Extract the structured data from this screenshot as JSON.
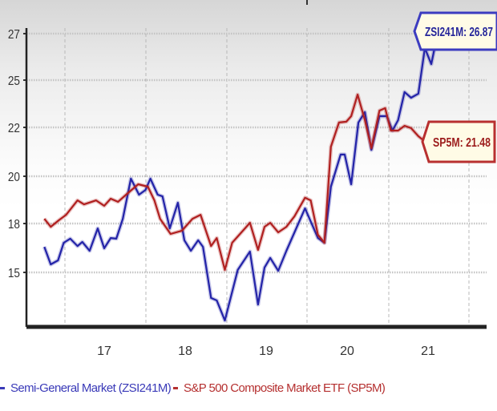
{
  "chart_data": {
    "type": "line",
    "title": "",
    "xlabel": "",
    "ylabel": "",
    "x_ticks": [
      "17",
      "18",
      "19",
      "20",
      "21"
    ],
    "y_ticks": [
      "15",
      "18",
      "20",
      "22",
      "25",
      "27"
    ],
    "x_range": [
      16.5,
      21.75
    ],
    "y_range": [
      12,
      27
    ],
    "grid": {
      "horizontal": "dotted",
      "vertical": "dashed"
    },
    "legend_position": "bottom",
    "series": [
      {
        "name": "Semi-General Market (ZSI241M)",
        "color": "#2323a8",
        "end_label": "ZSI241M: 26.87",
        "points": [
          [
            16.26,
            16.57
          ],
          [
            16.34,
            15.49
          ],
          [
            16.43,
            15.74
          ],
          [
            16.5,
            16.82
          ],
          [
            16.58,
            17.07
          ],
          [
            16.67,
            16.62
          ],
          [
            16.73,
            16.87
          ],
          [
            16.82,
            16.33
          ],
          [
            16.92,
            17.7
          ],
          [
            17.0,
            16.48
          ],
          [
            17.08,
            17.11
          ],
          [
            17.15,
            17.07
          ],
          [
            17.23,
            18.2
          ],
          [
            17.33,
            19.9
          ],
          [
            17.43,
            19.22
          ],
          [
            17.51,
            19.42
          ],
          [
            17.57,
            19.9
          ],
          [
            17.66,
            19.22
          ],
          [
            17.72,
            19.15
          ],
          [
            17.81,
            17.7
          ],
          [
            17.91,
            18.88
          ],
          [
            17.99,
            16.97
          ],
          [
            18.07,
            16.33
          ],
          [
            18.16,
            16.97
          ],
          [
            18.22,
            16.57
          ],
          [
            18.32,
            13.43
          ],
          [
            18.39,
            13.28
          ],
          [
            18.49,
            12.05
          ],
          [
            18.65,
            15.15
          ],
          [
            18.8,
            16.28
          ],
          [
            18.9,
            13.03
          ],
          [
            18.98,
            15.3
          ],
          [
            19.05,
            15.89
          ],
          [
            19.15,
            15.1
          ],
          [
            19.25,
            16.33
          ],
          [
            19.48,
            18.64
          ],
          [
            19.64,
            17.11
          ],
          [
            19.72,
            16.82
          ],
          [
            19.8,
            19.56
          ],
          [
            19.92,
            20.89
          ],
          [
            19.97,
            20.89
          ],
          [
            20.05,
            19.66
          ],
          [
            20.14,
            22.31
          ],
          [
            20.22,
            22.97
          ],
          [
            20.3,
            21.08
          ],
          [
            20.4,
            22.71
          ],
          [
            20.49,
            22.71
          ],
          [
            20.56,
            21.87
          ],
          [
            20.63,
            22.46
          ],
          [
            20.71,
            24.24
          ],
          [
            20.79,
            23.88
          ],
          [
            20.88,
            24.14
          ],
          [
            20.96,
            26.38
          ],
          [
            21.04,
            25.69
          ],
          [
            21.11,
            26.87
          ]
        ]
      },
      {
        "name": "S&P 500 Composite Market ETF (SP5M)",
        "color": "#b02020",
        "end_label": "SP5M: 21.48",
        "points": [
          [
            16.26,
            18.2
          ],
          [
            16.34,
            17.8
          ],
          [
            16.44,
            18.14
          ],
          [
            16.53,
            18.37
          ],
          [
            16.67,
            18.98
          ],
          [
            16.75,
            18.81
          ],
          [
            16.9,
            18.98
          ],
          [
            17.0,
            18.75
          ],
          [
            17.08,
            19.05
          ],
          [
            17.17,
            18.92
          ],
          [
            17.27,
            19.22
          ],
          [
            17.42,
            19.66
          ],
          [
            17.54,
            19.56
          ],
          [
            17.62,
            18.98
          ],
          [
            17.69,
            18.2
          ],
          [
            17.82,
            17.36
          ],
          [
            17.96,
            17.56
          ],
          [
            18.09,
            18.2
          ],
          [
            18.19,
            18.37
          ],
          [
            18.32,
            16.62
          ],
          [
            18.39,
            17.11
          ],
          [
            18.49,
            15.15
          ],
          [
            18.58,
            16.82
          ],
          [
            18.8,
            18.03
          ],
          [
            18.9,
            16.38
          ],
          [
            18.98,
            17.8
          ],
          [
            19.05,
            18.03
          ],
          [
            19.15,
            17.46
          ],
          [
            19.25,
            17.8
          ],
          [
            19.35,
            18.31
          ],
          [
            19.48,
            19.09
          ],
          [
            19.55,
            18.98
          ],
          [
            19.64,
            17.31
          ],
          [
            19.72,
            16.82
          ],
          [
            19.8,
            21.21
          ],
          [
            19.9,
            22.31
          ],
          [
            19.99,
            22.36
          ],
          [
            20.05,
            22.71
          ],
          [
            20.13,
            24.08
          ],
          [
            20.22,
            22.46
          ],
          [
            20.3,
            21.15
          ],
          [
            20.4,
            23.07
          ],
          [
            20.47,
            23.22
          ],
          [
            20.54,
            21.87
          ],
          [
            20.63,
            21.87
          ],
          [
            20.71,
            22.1
          ],
          [
            20.79,
            21.97
          ],
          [
            20.88,
            21.64
          ],
          [
            20.94,
            21.48
          ]
        ]
      }
    ]
  },
  "legend": {
    "items": [
      {
        "label": "Semi-General Market (ZSI241M)",
        "color": "#3a3ab8"
      },
      {
        "label": "S&P 500 Composite Market ETF (SP5M)",
        "color": "#b53030"
      }
    ]
  }
}
